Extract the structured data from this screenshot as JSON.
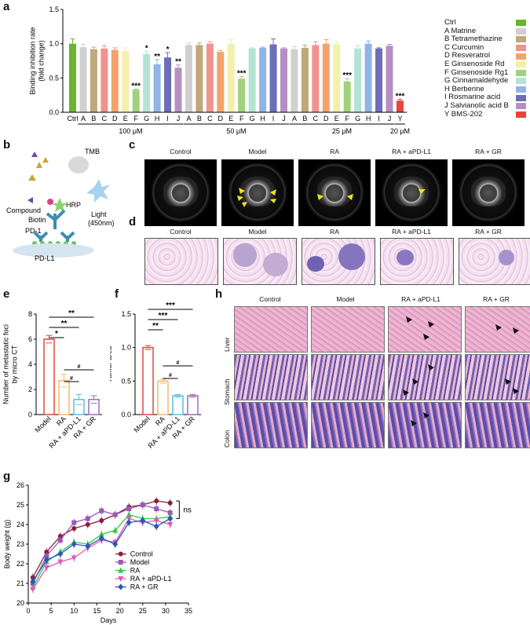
{
  "panels": {
    "a": "a",
    "b": "b",
    "c": "c",
    "d": "d",
    "e": "e",
    "f": "f",
    "g": "g",
    "h": "h"
  },
  "chart_data": [
    {
      "id": "a",
      "type": "bar",
      "ylabel": "Binding inhibition rate\n(fold change)",
      "ylim": [
        0,
        1.5
      ],
      "yticks": [
        "0.0",
        "0.5",
        "1.0",
        "1.5"
      ],
      "groups": [
        {
          "label": "",
          "categories": [
            "Ctrl"
          ],
          "values": [
            1.0
          ],
          "errors": [
            0.07
          ],
          "stars": [
            ""
          ]
        },
        {
          "label": "100 μM",
          "categories": [
            "A",
            "B",
            "C",
            "D",
            "E",
            "F",
            "G",
            "H",
            "I",
            "J"
          ],
          "values": [
            0.95,
            0.92,
            0.93,
            0.91,
            0.89,
            0.33,
            0.85,
            0.7,
            0.8,
            0.65
          ],
          "errors": [
            0.04,
            0.03,
            0.04,
            0.03,
            0.05,
            0.01,
            0.04,
            0.07,
            0.07,
            0.04
          ],
          "stars": [
            "",
            "",
            "",
            "",
            "",
            "***",
            "*",
            "**",
            "*",
            "**"
          ]
        },
        {
          "label": "50 μM",
          "categories": [
            "A",
            "B",
            "C",
            "D",
            "E",
            "F",
            "G",
            "H",
            "I",
            "J"
          ],
          "values": [
            0.98,
            0.98,
            1.0,
            0.88,
            1.0,
            0.49,
            0.93,
            0.94,
            0.99,
            0.93
          ],
          "errors": [
            0.03,
            0.03,
            0.03,
            0.02,
            0.06,
            0.03,
            0.01,
            0.01,
            0.08,
            0.01
          ],
          "stars": [
            "",
            "",
            "",
            "",
            "",
            "***",
            "",
            "",
            "",
            ""
          ]
        },
        {
          "label": "25 μM",
          "categories": [
            "A",
            "B",
            "C",
            "D",
            "E",
            "F",
            "G",
            "H",
            "I",
            "J"
          ],
          "values": [
            0.92,
            0.94,
            0.98,
            1.0,
            0.99,
            0.45,
            0.93,
            1.0,
            0.93,
            0.97
          ],
          "errors": [
            0.04,
            0.04,
            0.05,
            0.06,
            0.03,
            0.04,
            0.04,
            0.04,
            0.01,
            0.02
          ],
          "stars": [
            "",
            "",
            "",
            "",
            "",
            "***",
            "",
            "",
            "",
            ""
          ]
        },
        {
          "label": "20 μM",
          "categories": [
            "Y"
          ],
          "values": [
            0.17
          ],
          "errors": [
            0.02
          ],
          "stars": [
            "***"
          ]
        }
      ],
      "legend": [
        {
          "name": "Ctrl",
          "color": "#6ab42f"
        },
        {
          "name": "A Matrine",
          "color": "#d0d0d0"
        },
        {
          "name": "B Tetramethazine",
          "color": "#bfa87a"
        },
        {
          "name": "C Curcumin",
          "color": "#f0938c"
        },
        {
          "name": "D Resveratrol",
          "color": "#f4a36b"
        },
        {
          "name": "E Ginsenoside Rd",
          "color": "#f3efad"
        },
        {
          "name": "F Ginsenoside Rg1",
          "color": "#9fd27a"
        },
        {
          "name": "G Cinnamaldehyde",
          "color": "#b3e4d3"
        },
        {
          "name": "H Berberine",
          "color": "#8fb5e6"
        },
        {
          "name": "I Rosmarine acid",
          "color": "#6d6eb6"
        },
        {
          "name": "J Salvianolic acid B",
          "color": "#b58fc4"
        },
        {
          "name": "Y BMS-202",
          "color": "#e8453c"
        }
      ]
    },
    {
      "id": "e",
      "type": "bar",
      "ylabel": "Number of metastatic foci\nby micro CT",
      "ylim": [
        0,
        8
      ],
      "yticks": [
        "0",
        "2",
        "4",
        "6",
        "8"
      ],
      "categories": [
        "Model",
        "RA",
        "RA + aPD-L1",
        "RA + GR"
      ],
      "values": [
        6.0,
        2.7,
        1.2,
        1.2
      ],
      "errors": [
        0.3,
        0.5,
        0.4,
        0.3
      ],
      "colors": [
        "#e8453c",
        "#f4b96d",
        "#55c0e0",
        "#9b6dc0"
      ],
      "sig": [
        "*",
        "**",
        "**",
        "#",
        "#"
      ]
    },
    {
      "id": "f",
      "type": "bar",
      "ylabel": "Tumor area",
      "ylim": [
        0,
        1.5
      ],
      "yticks": [
        "0.0",
        "0.5",
        "1.0",
        "1.5"
      ],
      "categories": [
        "Model",
        "RA",
        "RA + aPD-L1",
        "RA + GR"
      ],
      "values": [
        1.0,
        0.5,
        0.28,
        0.28
      ],
      "errors": [
        0.03,
        0.03,
        0.02,
        0.02
      ],
      "colors": [
        "#e8453c",
        "#f4b96d",
        "#55c0e0",
        "#9b6dc0"
      ],
      "sig": [
        "**",
        "***",
        "***",
        "#",
        "#"
      ]
    },
    {
      "id": "g",
      "type": "line",
      "xlabel": "Days",
      "ylabel": "Body weight (g)",
      "xlim": [
        0,
        35
      ],
      "ylim": [
        20,
        26
      ],
      "xticks": [
        "0",
        "5",
        "10",
        "15",
        "20",
        "25",
        "30",
        "35"
      ],
      "yticks": [
        "20",
        "21",
        "22",
        "23",
        "24",
        "25",
        "26"
      ],
      "x": [
        1,
        4,
        7,
        10,
        13,
        16,
        19,
        22,
        25,
        28,
        31
      ],
      "annotation": "ns",
      "series": [
        {
          "name": "Control",
          "color": "#8b1c3c",
          "marker": "circle",
          "values": [
            21.3,
            22.6,
            23.4,
            23.8,
            24.0,
            24.2,
            24.5,
            24.9,
            25.0,
            25.2,
            25.1
          ]
        },
        {
          "name": "Model",
          "color": "#9b59b6",
          "marker": "square",
          "values": [
            21.0,
            22.4,
            23.2,
            24.1,
            24.3,
            24.7,
            24.5,
            24.8,
            25.0,
            24.8,
            24.6
          ]
        },
        {
          "name": "RA",
          "color": "#2ecc40",
          "marker": "triangle",
          "values": [
            20.8,
            22.1,
            22.6,
            23.1,
            23.0,
            23.5,
            23.7,
            24.5,
            24.3,
            24.3,
            24.4
          ]
        },
        {
          "name": "RA + aPD-L1",
          "color": "#e05ab8",
          "marker": "tri-down",
          "values": [
            20.7,
            21.8,
            22.1,
            22.3,
            22.8,
            23.2,
            23.1,
            24.3,
            24.1,
            24.2,
            24.0
          ]
        },
        {
          "name": "RA + GR",
          "color": "#2b57b8",
          "marker": "diamond",
          "values": [
            21.1,
            22.2,
            22.5,
            23.0,
            22.9,
            23.3,
            23.0,
            24.1,
            24.2,
            23.9,
            24.3
          ]
        }
      ]
    }
  ],
  "panel_b": {
    "labels": {
      "tmb": "TMB",
      "compound": "Compound",
      "hrp": "HRP",
      "biotin": "Biotin",
      "light": "Light\n(450nm)",
      "pd1": "PD-1",
      "pdl1": "PD-L1"
    }
  },
  "panel_c": {
    "columns": [
      "Control",
      "Model",
      "RA",
      "RA + aPD-L1",
      "RA + GR"
    ],
    "arrow_color": "#f1e11b"
  },
  "panel_d": {
    "columns": [
      "Control",
      "Model",
      "RA",
      "RA + aPD-L1",
      "RA + GR"
    ]
  },
  "panel_h": {
    "columns": [
      "Control",
      "Model",
      "RA + aPD-L1",
      "RA + GR"
    ],
    "rows": [
      "Liver",
      "Stomach",
      "Colon"
    ]
  }
}
